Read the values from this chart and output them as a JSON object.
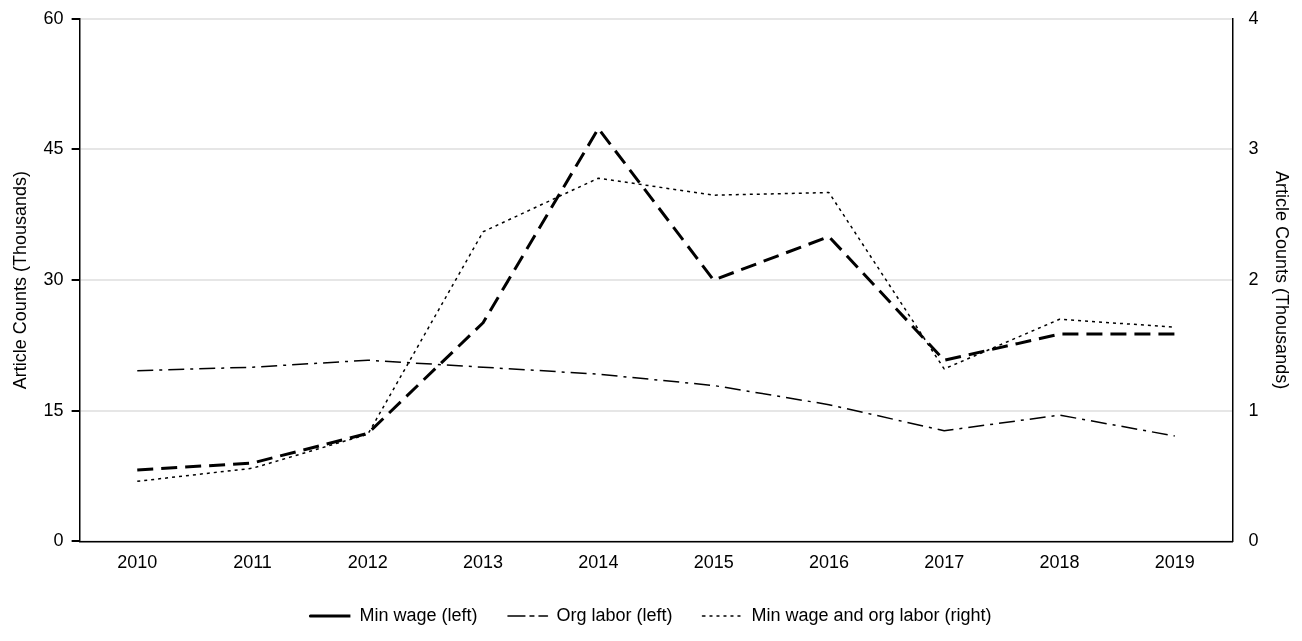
{
  "chart_data": {
    "type": "line",
    "categories": [
      "2010",
      "2011",
      "2012",
      "2013",
      "2014",
      "2015",
      "2016",
      "2017",
      "2018",
      "2019"
    ],
    "series": [
      {
        "name": "Min wage (left)",
        "color": "#000000",
        "line_style": "dashed",
        "values": [
          8.2,
          9.0,
          12.4,
          25.1,
          47.4,
          30,
          35,
          20.8,
          23.8,
          23.8
        ]
      },
      {
        "name": "Org labor (left)",
        "color": "#000000",
        "line_style": "dashdot",
        "values": [
          19.6,
          20,
          20.8,
          20,
          19.2,
          17.9,
          15.7,
          12.7,
          14.5,
          12.1
        ]
      },
      {
        "name": "Min wage and org labor (right)",
        "color": "#000000",
        "line_style": "dotted",
        "axis": "y2",
        "values": [
          0.46,
          0.56,
          0.82,
          2.37,
          2.78,
          2.65,
          2.67,
          1.32,
          1.7,
          1.64
        ]
      }
    ],
    "ylabel": "Article Counts (Thousands)",
    "y2label": "Article Counts (Thousands)",
    "ylim": [
      0,
      60
    ],
    "yticks": [
      0,
      15,
      30,
      45,
      60
    ],
    "y2lim": [
      0,
      4
    ],
    "y2ticks": [
      0,
      1,
      2,
      3,
      4
    ],
    "grid": "y",
    "legend": "bottom",
    "marker": "none"
  }
}
